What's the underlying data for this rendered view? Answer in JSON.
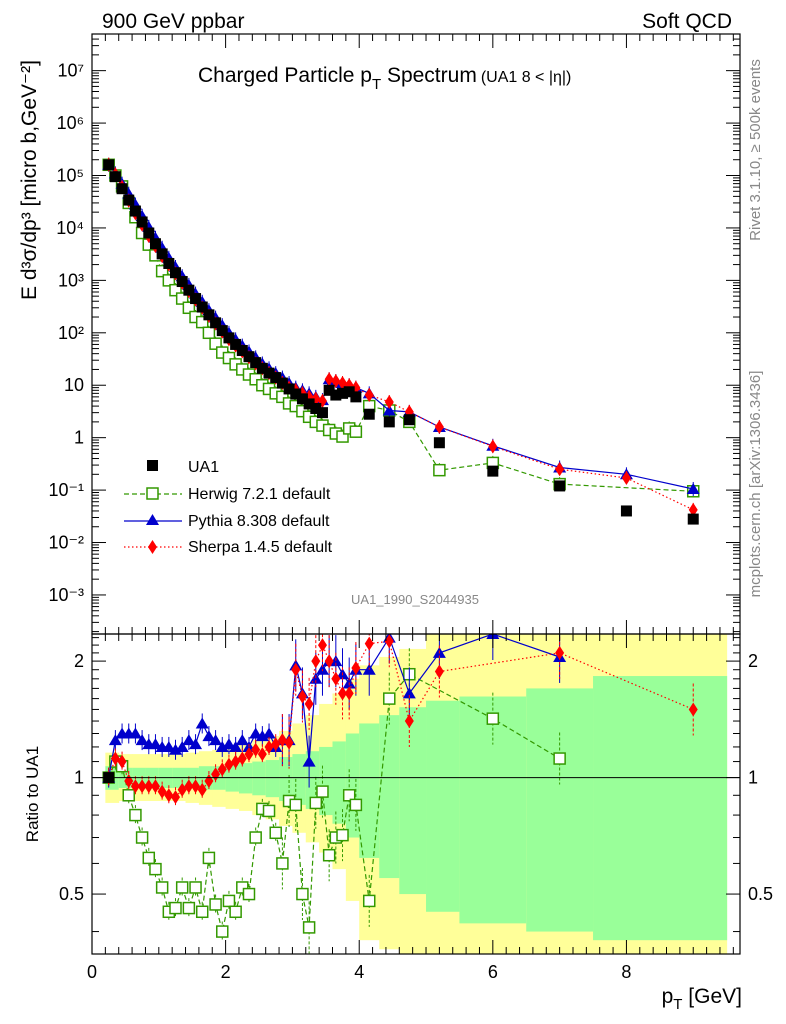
{
  "header": {
    "left_label": "900 GeV ppbar",
    "right_label": "Soft QCD"
  },
  "side_labels": {
    "rivet": "Rivet 3.1.10, ≥ 500k events",
    "mcplots": "mcplots.cern.ch [arXiv:1306.3436]"
  },
  "colors": {
    "data": "#000000",
    "herwig": "#339900",
    "pythia": "#0000cc",
    "sherpa": "#ff0000",
    "band_inner": "#99ff99",
    "band_outer": "#ffff99"
  },
  "chart_data": [
    {
      "type": "scatter",
      "name": "main",
      "title": "Charged Particle pT Spectrum",
      "title_base": "Charged Particle p",
      "title_sub": "T",
      "title_tail": " Spectrum",
      "title_cut": "(UA1   8 < |η|)",
      "ylabel": "E d³σ/dp³ [micro b,GeV⁻²]",
      "y_scale": "log",
      "xlim": [
        0,
        9.7
      ],
      "ylim": [
        0.00018,
        50000000
      ],
      "y_ticks": [
        {
          "value": 0.001,
          "label": "10⁻³"
        },
        {
          "value": 0.01,
          "label": "10⁻²"
        },
        {
          "value": 0.1,
          "label": "10⁻¹"
        },
        {
          "value": 1,
          "label": "1"
        },
        {
          "value": 10,
          "label": "10"
        },
        {
          "value": 100,
          "label": "10²"
        },
        {
          "value": 1000,
          "label": "10³"
        },
        {
          "value": 10000,
          "label": "10⁴"
        },
        {
          "value": 100000,
          "label": "10⁵"
        },
        {
          "value": 1000000,
          "label": "10⁶"
        },
        {
          "value": 10000000,
          "label": "10⁷"
        }
      ],
      "watermark": "UA1_1990_S2044935",
      "legend_position": "bottom-left",
      "series": [
        {
          "name": "UA1",
          "key": "data",
          "x": [
            0.25,
            0.35,
            0.45,
            0.55,
            0.65,
            0.75,
            0.85,
            0.95,
            1.05,
            1.15,
            1.25,
            1.35,
            1.45,
            1.55,
            1.65,
            1.75,
            1.85,
            1.95,
            2.05,
            2.15,
            2.25,
            2.35,
            2.45,
            2.55,
            2.65,
            2.75,
            2.85,
            2.95,
            3.05,
            3.15,
            3.25,
            3.35,
            3.45,
            3.55,
            3.65,
            3.75,
            3.85,
            3.95,
            4.15,
            4.45,
            4.75,
            5.2,
            6.0,
            7.0,
            8.0,
            9.0
          ],
          "y": [
            160000,
            95000,
            56000,
            34000,
            21000,
            13000,
            8000,
            5000,
            3200,
            2100,
            1400,
            950,
            650,
            450,
            310,
            220,
            155,
            110,
            80,
            60,
            46,
            35,
            27,
            21,
            17,
            14,
            11,
            8.5,
            6.8,
            5.5,
            4.4,
            3.6,
            3.0,
            8.0,
            6.5,
            7.0,
            7.5,
            6.0,
            2.8,
            2.0,
            2.2,
            0.8,
            0.23,
            0.12,
            0.04,
            0.028
          ]
        },
        {
          "name": "Herwig 7.2.1 default",
          "key": "herwig",
          "x": [
            0.25,
            0.35,
            0.45,
            0.55,
            0.65,
            0.75,
            0.85,
            0.95,
            1.05,
            1.15,
            1.25,
            1.35,
            1.45,
            1.55,
            1.65,
            1.75,
            1.85,
            1.95,
            2.05,
            2.15,
            2.25,
            2.35,
            2.45,
            2.55,
            2.65,
            2.75,
            2.85,
            2.95,
            3.05,
            3.15,
            3.25,
            3.35,
            3.45,
            3.55,
            3.65,
            3.75,
            3.85,
            3.95,
            4.15,
            4.45,
            4.75,
            5.2,
            6.0,
            7.0,
            9.0
          ],
          "y": [
            160000,
            100000,
            62000,
            30000,
            16000,
            8000,
            4800,
            3000,
            1500,
            1000,
            650,
            450,
            300,
            200,
            160,
            100,
            62,
            42,
            33,
            25,
            20,
            16,
            13,
            10,
            8.5,
            7,
            6,
            4.5,
            4.0,
            3.2,
            2.5,
            2.0,
            1.7,
            1.4,
            1.2,
            1.05,
            1.5,
            1.3,
            4.0,
            3.3,
            2.0,
            0.24,
            0.33,
            0.13,
            0.095
          ]
        },
        {
          "name": "Pythia 8.308 default",
          "key": "pythia",
          "x": [
            0.25,
            0.35,
            0.45,
            0.55,
            0.65,
            0.75,
            0.85,
            0.95,
            1.05,
            1.15,
            1.25,
            1.35,
            1.45,
            1.55,
            1.65,
            1.75,
            1.85,
            1.95,
            2.05,
            2.15,
            2.25,
            2.35,
            2.45,
            2.55,
            2.65,
            2.75,
            2.85,
            2.95,
            3.05,
            3.15,
            3.25,
            3.35,
            3.45,
            3.55,
            3.65,
            3.75,
            3.85,
            3.95,
            4.15,
            4.45,
            4.75,
            5.2,
            6.0,
            7.0,
            8.0,
            9.0
          ],
          "y": [
            160000,
            110000,
            70000,
            45000,
            28000,
            17000,
            10500,
            6500,
            4200,
            2700,
            1800,
            1200,
            820,
            560,
            390,
            270,
            195,
            140,
            100,
            75,
            57,
            44,
            34,
            26,
            21,
            17,
            14,
            11,
            9,
            8,
            7,
            6,
            5.2,
            13,
            12,
            11,
            10,
            9,
            7,
            3.3,
            3.1,
            1.6,
            0.7,
            0.27,
            0.2,
            0.105
          ]
        },
        {
          "name": "Sherpa 1.4.5 default",
          "key": "sherpa",
          "x": [
            0.25,
            0.35,
            0.45,
            0.55,
            0.65,
            0.75,
            0.85,
            0.95,
            1.05,
            1.15,
            1.25,
            1.35,
            1.45,
            1.55,
            1.65,
            1.75,
            1.85,
            1.95,
            2.05,
            2.15,
            2.25,
            2.35,
            2.45,
            2.55,
            2.65,
            2.75,
            2.85,
            2.95,
            3.05,
            3.15,
            3.25,
            3.35,
            3.45,
            3.55,
            3.65,
            3.75,
            3.85,
            3.95,
            4.15,
            4.45,
            4.75,
            5.2,
            6.0,
            7.0,
            8.0,
            9.0
          ],
          "y": [
            160000,
            105000,
            60000,
            33000,
            19000,
            11500,
            7000,
            4500,
            2900,
            2000,
            1350,
            900,
            620,
            430,
            300,
            210,
            150,
            105,
            75,
            57,
            44,
            34,
            26,
            21,
            17,
            14,
            11,
            9,
            8,
            7,
            6,
            5.5,
            5,
            13,
            12,
            11,
            10,
            9,
            6.5,
            4.8,
            3.1,
            1.6,
            0.68,
            0.25,
            0.17,
            0.042
          ]
        }
      ]
    },
    {
      "type": "scatter",
      "name": "ratio",
      "ylabel": "Ratio to UA1",
      "xlabel": "pT [GeV]",
      "xlabel_base": "p",
      "xlabel_sub": "T",
      "xlabel_unit": " [GeV]",
      "y_scale": "log",
      "xlim": [
        0,
        9.7
      ],
      "ylim": [
        0.35,
        2.35
      ],
      "x_ticks": [
        {
          "value": 0,
          "label": "0"
        },
        {
          "value": 2,
          "label": "2"
        },
        {
          "value": 4,
          "label": "4"
        },
        {
          "value": 6,
          "label": "6"
        },
        {
          "value": 8,
          "label": "8"
        }
      ],
      "y_ticks": [
        {
          "value": 0.5,
          "label": "0.5"
        },
        {
          "value": 1,
          "label": "1"
        },
        {
          "value": 2,
          "label": "2"
        }
      ],
      "bands": {
        "edges": [
          0.2,
          0.4,
          0.6,
          0.8,
          1.0,
          1.2,
          1.4,
          1.6,
          1.8,
          2.0,
          2.2,
          2.4,
          2.6,
          2.8,
          3.0,
          3.2,
          3.4,
          3.6,
          3.8,
          4.0,
          4.3,
          4.6,
          5.0,
          5.5,
          6.5,
          7.5,
          9.5
        ],
        "inner_low": [
          0.93,
          0.94,
          0.94,
          0.94,
          0.94,
          0.94,
          0.94,
          0.93,
          0.93,
          0.92,
          0.91,
          0.9,
          0.89,
          0.87,
          0.85,
          0.83,
          0.8,
          0.76,
          0.7,
          0.62,
          0.55,
          0.5,
          0.45,
          0.42,
          0.4,
          0.38
        ],
        "inner_high": [
          1.07,
          1.06,
          1.06,
          1.06,
          1.06,
          1.06,
          1.06,
          1.07,
          1.07,
          1.08,
          1.09,
          1.1,
          1.11,
          1.13,
          1.15,
          1.17,
          1.2,
          1.24,
          1.3,
          1.38,
          1.45,
          1.52,
          1.58,
          1.62,
          1.7,
          1.83
        ],
        "outer_low": [
          0.86,
          0.87,
          0.87,
          0.87,
          0.87,
          0.87,
          0.86,
          0.85,
          0.84,
          0.83,
          0.82,
          0.8,
          0.78,
          0.75,
          0.72,
          0.68,
          0.64,
          0.58,
          0.48,
          0.38,
          0.36,
          0.33,
          0.33,
          0.33,
          0.33,
          0.33
        ],
        "outer_high": [
          1.16,
          1.15,
          1.15,
          1.15,
          1.15,
          1.15,
          1.16,
          1.17,
          1.18,
          1.2,
          1.22,
          1.25,
          1.28,
          1.32,
          1.38,
          1.45,
          1.55,
          1.65,
          1.8,
          1.95,
          2.05,
          2.15,
          2.35,
          2.35,
          2.35,
          2.35
        ]
      },
      "series": [
        {
          "name": "Herwig 7.2.1 default",
          "key": "herwig",
          "x": [
            0.25,
            0.35,
            0.45,
            0.55,
            0.65,
            0.75,
            0.85,
            0.95,
            1.05,
            1.15,
            1.25,
            1.35,
            1.45,
            1.55,
            1.65,
            1.75,
            1.85,
            1.95,
            2.05,
            2.15,
            2.25,
            2.35,
            2.45,
            2.55,
            2.65,
            2.75,
            2.85,
            2.95,
            3.05,
            3.15,
            3.25,
            3.35,
            3.45,
            3.55,
            3.65,
            3.75,
            3.85,
            3.95,
            4.15,
            4.45,
            4.75,
            6.0,
            7.0
          ],
          "y": [
            1.0,
            1.1,
            1.07,
            0.9,
            0.8,
            0.7,
            0.62,
            0.58,
            0.52,
            0.45,
            0.46,
            0.52,
            0.46,
            0.52,
            0.45,
            0.62,
            0.47,
            0.4,
            0.48,
            0.45,
            0.52,
            0.5,
            0.7,
            0.83,
            0.82,
            0.72,
            0.6,
            0.87,
            0.85,
            0.5,
            0.41,
            0.86,
            0.92,
            0.63,
            0.7,
            0.71,
            0.9,
            0.85,
            0.48,
            1.6,
            1.85,
            1.42,
            1.12
          ]
        },
        {
          "name": "Pythia 8.308 default",
          "key": "pythia",
          "x": [
            0.25,
            0.35,
            0.45,
            0.55,
            0.65,
            0.75,
            0.85,
            0.95,
            1.05,
            1.15,
            1.25,
            1.35,
            1.45,
            1.55,
            1.65,
            1.75,
            1.85,
            1.95,
            2.05,
            2.15,
            2.25,
            2.35,
            2.45,
            2.55,
            2.65,
            2.75,
            2.85,
            2.95,
            3.05,
            3.15,
            3.25,
            3.35,
            3.45,
            3.55,
            3.65,
            3.75,
            3.85,
            3.95,
            4.15,
            4.45,
            4.75,
            5.2,
            6.0,
            7.0
          ],
          "y": [
            1.0,
            1.25,
            1.3,
            1.3,
            1.3,
            1.25,
            1.22,
            1.22,
            1.2,
            1.2,
            1.18,
            1.2,
            1.25,
            1.22,
            1.38,
            1.28,
            1.25,
            1.2,
            1.22,
            1.2,
            1.25,
            1.2,
            1.3,
            1.28,
            1.3,
            1.2,
            1.25,
            1.25,
            1.95,
            1.65,
            1.1,
            1.8,
            1.9,
            2.0,
            2.0,
            1.85,
            1.75,
            1.9,
            1.9,
            2.3,
            1.65,
            2.1,
            2.35,
            2.05
          ]
        },
        {
          "name": "Sherpa 1.4.5 default",
          "key": "sherpa",
          "x": [
            0.25,
            0.35,
            0.45,
            0.55,
            0.65,
            0.75,
            0.85,
            0.95,
            1.05,
            1.15,
            1.25,
            1.35,
            1.45,
            1.55,
            1.65,
            1.75,
            1.85,
            1.95,
            2.05,
            2.15,
            2.25,
            2.35,
            2.45,
            2.55,
            2.65,
            2.75,
            2.85,
            2.95,
            3.05,
            3.15,
            3.25,
            3.35,
            3.45,
            3.55,
            3.65,
            3.75,
            3.85,
            3.95,
            4.15,
            4.45,
            4.75,
            5.2,
            7.0,
            9.0
          ],
          "y": [
            1.0,
            1.12,
            1.1,
            0.98,
            0.95,
            0.95,
            0.95,
            0.95,
            0.92,
            0.9,
            0.89,
            0.93,
            0.95,
            0.95,
            0.93,
            0.98,
            1.02,
            1.05,
            1.08,
            1.1,
            1.12,
            1.15,
            1.18,
            1.15,
            1.2,
            1.22,
            1.25,
            1.23,
            1.9,
            1.62,
            1.55,
            2.0,
            2.2,
            2.0,
            1.8,
            1.65,
            1.65,
            1.92,
            2.22,
            2.25,
            1.4,
            1.88,
            2.1,
            1.5
          ]
        }
      ]
    }
  ]
}
